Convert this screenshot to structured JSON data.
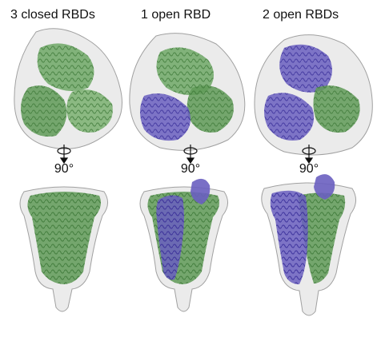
{
  "panels": [
    {
      "title": "3 closed RBDs",
      "rotation": "90°",
      "open_rbds": 0
    },
    {
      "title": "1 open RBD",
      "rotation": "90°",
      "open_rbds": 1
    },
    {
      "title": "2 open RBDs",
      "rotation": "90°",
      "open_rbds": 2
    }
  ],
  "colors": {
    "closed_protomer": "#5f9a57",
    "open_protomer": "#6a5fc0",
    "density_map": "#dcdcdc",
    "outline": "#9a9a9a",
    "text": "#111111"
  }
}
